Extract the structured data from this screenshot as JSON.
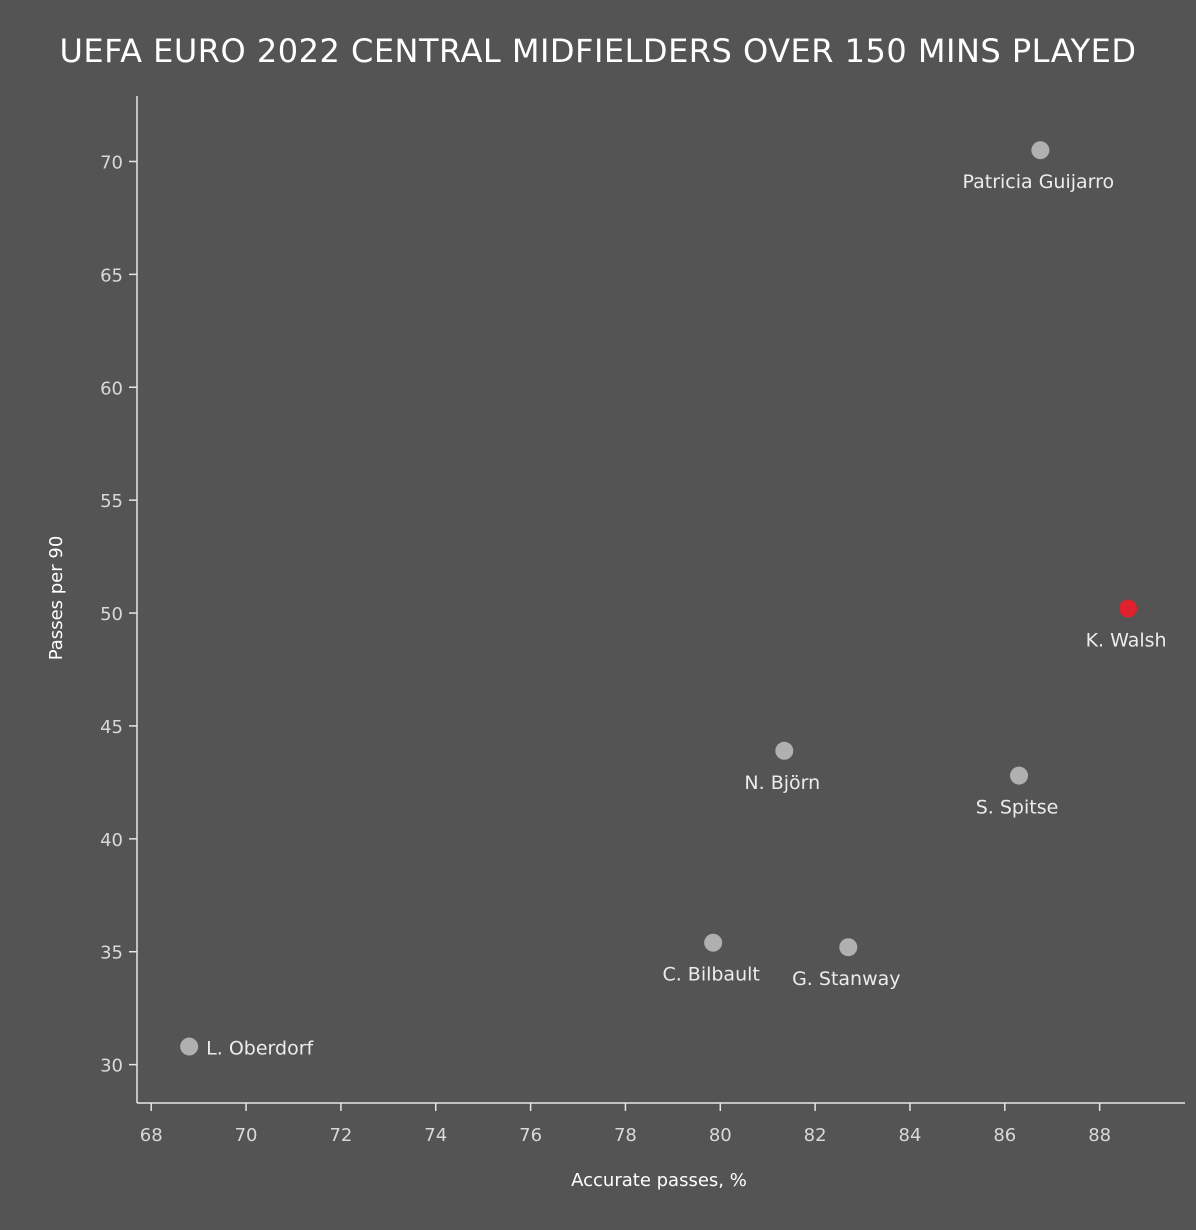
{
  "chart_data": {
    "type": "scatter",
    "title": "UEFA EURO 2022 CENTRAL MIDFIELDERS OVER 150 MINS PLAYED",
    "xlabel": "Accurate passes, %",
    "ylabel": "Passes per 90",
    "xlim": [
      67.7,
      89.8
    ],
    "ylim": [
      28.3,
      72.9
    ],
    "xticks": [
      68,
      70,
      72,
      74,
      76,
      78,
      80,
      82,
      84,
      86,
      88
    ],
    "yticks": [
      30,
      35,
      40,
      45,
      50,
      55,
      60,
      65,
      70
    ],
    "grid": false,
    "colors": {
      "default_point": "#b0b0b0",
      "highlight_point": "#e0212e",
      "background": "#545454"
    },
    "points": [
      {
        "label": "Patricia Guijarro",
        "x": 86.75,
        "y": 70.5,
        "highlight": false,
        "label_pos": "below"
      },
      {
        "label": "K. Walsh",
        "x": 88.6,
        "y": 50.2,
        "highlight": true,
        "label_pos": "below"
      },
      {
        "label": "N. Björn",
        "x": 81.35,
        "y": 43.9,
        "highlight": false,
        "label_pos": "below"
      },
      {
        "label": "S. Spitse",
        "x": 86.3,
        "y": 42.8,
        "highlight": false,
        "label_pos": "below"
      },
      {
        "label": "C. Bilbault",
        "x": 79.85,
        "y": 35.4,
        "highlight": false,
        "label_pos": "below"
      },
      {
        "label": "G. Stanway",
        "x": 82.7,
        "y": 35.2,
        "highlight": false,
        "label_pos": "below"
      },
      {
        "label": "L. Oberdorf",
        "x": 68.8,
        "y": 30.8,
        "highlight": false,
        "label_pos": "right"
      }
    ]
  }
}
